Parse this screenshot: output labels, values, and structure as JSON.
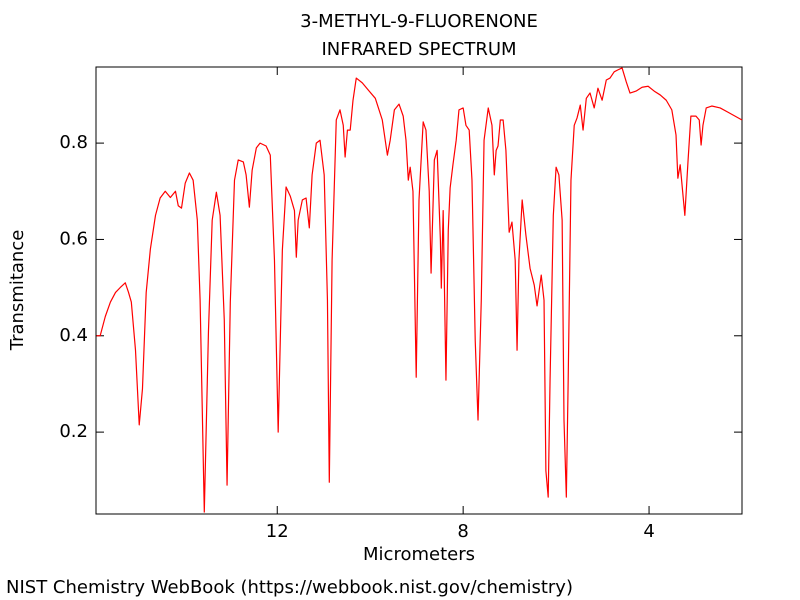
{
  "chart_data": {
    "type": "line",
    "title": "3-METHYL-9-FLUORENONE",
    "subtitle": "INFRARED SPECTRUM",
    "x_label": "Micrometers",
    "y_label": "Transmitance",
    "xlim": [
      15.9,
      2.0
    ],
    "ylim": [
      0.03,
      0.958
    ],
    "xticks": [
      12,
      8,
      4
    ],
    "yticks": [
      0.2,
      0.4,
      0.6,
      0.8
    ],
    "color": "#ff0000",
    "x": [
      15.89,
      15.81,
      15.7,
      15.59,
      15.48,
      15.38,
      15.27,
      15.2,
      15.14,
      15.05,
      14.97,
      14.9,
      14.82,
      14.73,
      14.62,
      14.52,
      14.41,
      14.3,
      14.19,
      14.13,
      14.06,
      13.98,
      13.89,
      13.81,
      13.72,
      13.66,
      13.57,
      13.48,
      13.4,
      13.31,
      13.23,
      13.14,
      13.08,
      13.01,
      12.92,
      12.84,
      12.73,
      12.67,
      12.6,
      12.54,
      12.45,
      12.37,
      12.24,
      12.15,
      12.06,
      11.98,
      11.89,
      11.81,
      11.72,
      11.63,
      11.59,
      11.55,
      11.46,
      11.38,
      11.31,
      11.25,
      11.16,
      11.08,
      10.99,
      10.92,
      10.88,
      10.82,
      10.73,
      10.65,
      10.58,
      10.54,
      10.49,
      10.43,
      10.37,
      10.3,
      10.17,
      10.04,
      9.89,
      9.74,
      9.63,
      9.57,
      9.48,
      9.38,
      9.29,
      9.23,
      9.18,
      9.14,
      9.08,
      9.01,
      8.95,
      8.86,
      8.8,
      8.73,
      8.69,
      8.62,
      8.56,
      8.49,
      8.47,
      8.43,
      8.37,
      8.32,
      8.28,
      8.22,
      8.15,
      8.09,
      8.0,
      7.94,
      7.87,
      7.81,
      7.74,
      7.68,
      7.61,
      7.55,
      7.46,
      7.38,
      7.33,
      7.29,
      7.25,
      7.2,
      7.14,
      7.08,
      7.01,
      6.95,
      6.88,
      6.84,
      6.8,
      6.73,
      6.65,
      6.56,
      6.47,
      6.41,
      6.32,
      6.26,
      6.22,
      6.17,
      6.13,
      6.06,
      6.0,
      5.94,
      5.87,
      5.83,
      5.78,
      5.74,
      5.68,
      5.61,
      5.55,
      5.48,
      5.42,
      5.35,
      5.27,
      5.18,
      5.1,
      5.01,
      4.92,
      4.84,
      4.75,
      4.67,
      4.58,
      4.49,
      4.41,
      4.28,
      4.15,
      4.02,
      3.89,
      3.76,
      3.63,
      3.51,
      3.42,
      3.38,
      3.33,
      3.29,
      3.23,
      3.16,
      3.1,
      2.99,
      2.92,
      2.88,
      2.84,
      2.77,
      2.65,
      2.47,
      2.3,
      2.15,
      2.0
    ],
    "values": [
      0.4,
      0.4,
      0.44,
      0.47,
      0.49,
      0.5,
      0.51,
      0.49,
      0.47,
      0.37,
      0.215,
      0.29,
      0.49,
      0.58,
      0.65,
      0.686,
      0.7,
      0.687,
      0.7,
      0.67,
      0.665,
      0.717,
      0.738,
      0.723,
      0.64,
      0.474,
      0.034,
      0.41,
      0.64,
      0.698,
      0.65,
      0.433,
      0.09,
      0.47,
      0.723,
      0.765,
      0.761,
      0.734,
      0.667,
      0.744,
      0.79,
      0.8,
      0.794,
      0.775,
      0.557,
      0.2,
      0.578,
      0.709,
      0.69,
      0.66,
      0.563,
      0.64,
      0.682,
      0.686,
      0.624,
      0.734,
      0.8,
      0.806,
      0.734,
      0.474,
      0.096,
      0.557,
      0.848,
      0.869,
      0.837,
      0.771,
      0.827,
      0.827,
      0.889,
      0.935,
      0.925,
      0.91,
      0.893,
      0.848,
      0.775,
      0.806,
      0.869,
      0.881,
      0.856,
      0.806,
      0.723,
      0.75,
      0.7,
      0.314,
      0.682,
      0.844,
      0.827,
      0.7,
      0.53,
      0.765,
      0.785,
      0.599,
      0.499,
      0.66,
      0.308,
      0.62,
      0.707,
      0.755,
      0.806,
      0.869,
      0.873,
      0.837,
      0.827,
      0.723,
      0.39,
      0.225,
      0.474,
      0.806,
      0.873,
      0.837,
      0.734,
      0.785,
      0.794,
      0.848,
      0.848,
      0.785,
      0.615,
      0.636,
      0.557,
      0.37,
      0.557,
      0.682,
      0.609,
      0.54,
      0.505,
      0.462,
      0.526,
      0.474,
      0.12,
      0.065,
      0.308,
      0.65,
      0.75,
      0.734,
      0.64,
      0.225,
      0.065,
      0.308,
      0.723,
      0.837,
      0.852,
      0.879,
      0.827,
      0.893,
      0.904,
      0.873,
      0.914,
      0.889,
      0.931,
      0.935,
      0.948,
      0.952,
      0.956,
      0.927,
      0.904,
      0.908,
      0.916,
      0.918,
      0.908,
      0.9,
      0.889,
      0.869,
      0.817,
      0.727,
      0.755,
      0.713,
      0.65,
      0.765,
      0.856,
      0.856,
      0.848,
      0.796,
      0.837,
      0.873,
      0.877,
      0.873,
      0.864,
      0.856,
      0.848
    ]
  },
  "footer": "NIST Chemistry WebBook (https://webbook.nist.gov/chemistry)"
}
